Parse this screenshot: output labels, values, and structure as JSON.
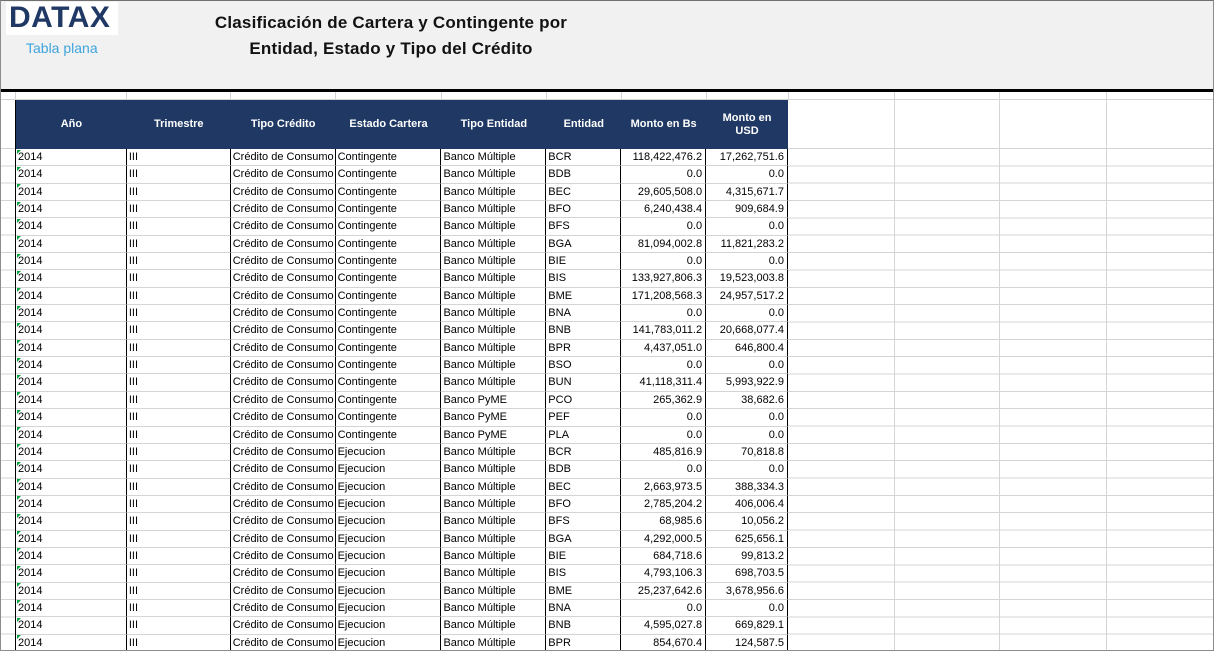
{
  "logo": {
    "brand": "DATAX",
    "subtitle": "Tabla plana"
  },
  "title": {
    "line1": "Clasificación de Cartera y Contingente por",
    "line2": "Entidad, Estado y Tipo del Crédito"
  },
  "colors": {
    "header_navy": "#1f3864",
    "brand_navy": "#1f3864",
    "subtitle_blue": "#3fa3dc",
    "gridline_gray": "#d4d4d4",
    "error_flag_green": "#00a33c",
    "top_band_gray": "#f1f1f1"
  },
  "table": {
    "columns": [
      {
        "key": "ano",
        "label": "Año"
      },
      {
        "key": "trimestre",
        "label": "Trimestre"
      },
      {
        "key": "tipo-credito",
        "label": "Tipo Crédito"
      },
      {
        "key": "estado-cartera",
        "label": "Estado Cartera"
      },
      {
        "key": "tipo-entidad",
        "label": "Tipo Entidad"
      },
      {
        "key": "entidad",
        "label": "Entidad"
      },
      {
        "key": "monto-bs",
        "label": "Monto en Bs"
      },
      {
        "key": "monto-usd",
        "label": "Monto en USD"
      }
    ],
    "rows": [
      [
        "2014",
        "III",
        "Crédito de Consumo",
        "Contingente",
        "Banco Múltiple",
        "BCR",
        "118,422,476.2",
        "17,262,751.6"
      ],
      [
        "2014",
        "III",
        "Crédito de Consumo",
        "Contingente",
        "Banco Múltiple",
        "BDB",
        "0.0",
        "0.0"
      ],
      [
        "2014",
        "III",
        "Crédito de Consumo",
        "Contingente",
        "Banco Múltiple",
        "BEC",
        "29,605,508.0",
        "4,315,671.7"
      ],
      [
        "2014",
        "III",
        "Crédito de Consumo",
        "Contingente",
        "Banco Múltiple",
        "BFO",
        "6,240,438.4",
        "909,684.9"
      ],
      [
        "2014",
        "III",
        "Crédito de Consumo",
        "Contingente",
        "Banco Múltiple",
        "BFS",
        "0.0",
        "0.0"
      ],
      [
        "2014",
        "III",
        "Crédito de Consumo",
        "Contingente",
        "Banco Múltiple",
        "BGA",
        "81,094,002.8",
        "11,821,283.2"
      ],
      [
        "2014",
        "III",
        "Crédito de Consumo",
        "Contingente",
        "Banco Múltiple",
        "BIE",
        "0.0",
        "0.0"
      ],
      [
        "2014",
        "III",
        "Crédito de Consumo",
        "Contingente",
        "Banco Múltiple",
        "BIS",
        "133,927,806.3",
        "19,523,003.8"
      ],
      [
        "2014",
        "III",
        "Crédito de Consumo",
        "Contingente",
        "Banco Múltiple",
        "BME",
        "171,208,568.3",
        "24,957,517.2"
      ],
      [
        "2014",
        "III",
        "Crédito de Consumo",
        "Contingente",
        "Banco Múltiple",
        "BNA",
        "0.0",
        "0.0"
      ],
      [
        "2014",
        "III",
        "Crédito de Consumo",
        "Contingente",
        "Banco Múltiple",
        "BNB",
        "141,783,011.2",
        "20,668,077.4"
      ],
      [
        "2014",
        "III",
        "Crédito de Consumo",
        "Contingente",
        "Banco Múltiple",
        "BPR",
        "4,437,051.0",
        "646,800.4"
      ],
      [
        "2014",
        "III",
        "Crédito de Consumo",
        "Contingente",
        "Banco Múltiple",
        "BSO",
        "0.0",
        "0.0"
      ],
      [
        "2014",
        "III",
        "Crédito de Consumo",
        "Contingente",
        "Banco Múltiple",
        "BUN",
        "41,118,311.4",
        "5,993,922.9"
      ],
      [
        "2014",
        "III",
        "Crédito de Consumo",
        "Contingente",
        "Banco PyME",
        "PCO",
        "265,362.9",
        "38,682.6"
      ],
      [
        "2014",
        "III",
        "Crédito de Consumo",
        "Contingente",
        "Banco PyME",
        "PEF",
        "0.0",
        "0.0"
      ],
      [
        "2014",
        "III",
        "Crédito de Consumo",
        "Contingente",
        "Banco PyME",
        "PLA",
        "0.0",
        "0.0"
      ],
      [
        "2014",
        "III",
        "Crédito de Consumo",
        "Ejecucion",
        "Banco Múltiple",
        "BCR",
        "485,816.9",
        "70,818.8"
      ],
      [
        "2014",
        "III",
        "Crédito de Consumo",
        "Ejecucion",
        "Banco Múltiple",
        "BDB",
        "0.0",
        "0.0"
      ],
      [
        "2014",
        "III",
        "Crédito de Consumo",
        "Ejecucion",
        "Banco Múltiple",
        "BEC",
        "2,663,973.5",
        "388,334.3"
      ],
      [
        "2014",
        "III",
        "Crédito de Consumo",
        "Ejecucion",
        "Banco Múltiple",
        "BFO",
        "2,785,204.2",
        "406,006.4"
      ],
      [
        "2014",
        "III",
        "Crédito de Consumo",
        "Ejecucion",
        "Banco Múltiple",
        "BFS",
        "68,985.6",
        "10,056.2"
      ],
      [
        "2014",
        "III",
        "Crédito de Consumo",
        "Ejecucion",
        "Banco Múltiple",
        "BGA",
        "4,292,000.5",
        "625,656.1"
      ],
      [
        "2014",
        "III",
        "Crédito de Consumo",
        "Ejecucion",
        "Banco Múltiple",
        "BIE",
        "684,718.6",
        "99,813.2"
      ],
      [
        "2014",
        "III",
        "Crédito de Consumo",
        "Ejecucion",
        "Banco Múltiple",
        "BIS",
        "4,793,106.3",
        "698,703.5"
      ],
      [
        "2014",
        "III",
        "Crédito de Consumo",
        "Ejecucion",
        "Banco Múltiple",
        "BME",
        "25,237,642.6",
        "3,678,956.6"
      ],
      [
        "2014",
        "III",
        "Crédito de Consumo",
        "Ejecucion",
        "Banco Múltiple",
        "BNA",
        "0.0",
        "0.0"
      ],
      [
        "2014",
        "III",
        "Crédito de Consumo",
        "Ejecucion",
        "Banco Múltiple",
        "BNB",
        "4,595,027.8",
        "669,829.1"
      ],
      [
        "2014",
        "III",
        "Crédito de Consumo",
        "Ejecucion",
        "Banco Múltiple",
        "BPR",
        "854,670.4",
        "124,587.5"
      ]
    ]
  }
}
